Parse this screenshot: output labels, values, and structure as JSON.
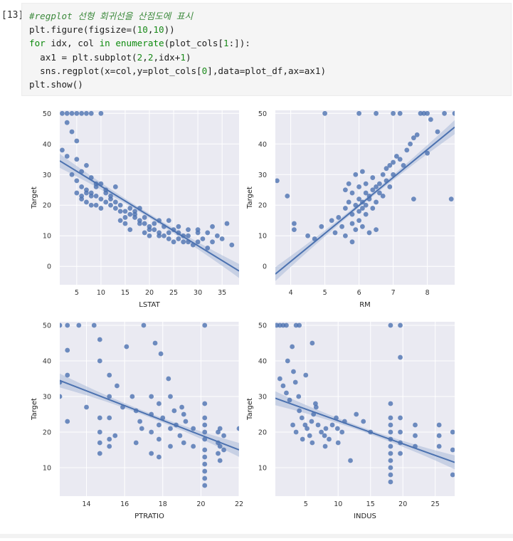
{
  "cell": {
    "prompt": "[13]",
    "code_lines": [
      "#regplot 선형 회귀선을 산점도에 표시",
      "plt.figure(figsize=(10,10))",
      "for idx, col in enumerate(plot_cols[1:]):",
      "  ax1 = plt.subplot(2,2,idx+1)",
      "  sns.regplot(x=col,y=plot_cols[0],data=plot_df,ax=ax1)",
      "plt.show()"
    ]
  },
  "colors": {
    "axes_bg": "#eaeaf2",
    "grid": "#ffffff",
    "point": "#4c72b0",
    "line": "#4c72b0",
    "ci_band": "#a9b9d8"
  },
  "chart_data": [
    {
      "type": "scatter",
      "xlabel": "LSTAT",
      "ylabel": "Target",
      "xlim": [
        1.5,
        38.5
      ],
      "ylim": [
        -6,
        51
      ],
      "xticks": [
        "5",
        "10",
        "15",
        "20",
        "25",
        "30",
        "35"
      ],
      "yticks": [
        "0",
        "10",
        "20",
        "30",
        "40",
        "50"
      ],
      "regression": {
        "x": [
          1.5,
          38.5
        ],
        "y": [
          34.5,
          -1.5
        ]
      },
      "points": [
        [
          2,
          50
        ],
        [
          3,
          50
        ],
        [
          4,
          50
        ],
        [
          5,
          50
        ],
        [
          6,
          50
        ],
        [
          7,
          50
        ],
        [
          8,
          50
        ],
        [
          10,
          50
        ],
        [
          3,
          47
        ],
        [
          4,
          44
        ],
        [
          5,
          41
        ],
        [
          2,
          38
        ],
        [
          3,
          36
        ],
        [
          5,
          35
        ],
        [
          7,
          33
        ],
        [
          6,
          31
        ],
        [
          8,
          29
        ],
        [
          9,
          27
        ],
        [
          4,
          30
        ],
        [
          5,
          28
        ],
        [
          6,
          26
        ],
        [
          7,
          25
        ],
        [
          8,
          24
        ],
        [
          9,
          23
        ],
        [
          10,
          22
        ],
        [
          11,
          21
        ],
        [
          12,
          20
        ],
        [
          13,
          19
        ],
        [
          14,
          20
        ],
        [
          15,
          18
        ],
        [
          16,
          17
        ],
        [
          17,
          16
        ],
        [
          18,
          15
        ],
        [
          19,
          14
        ],
        [
          20,
          13
        ],
        [
          21,
          12
        ],
        [
          22,
          11
        ],
        [
          23,
          10
        ],
        [
          24,
          9
        ],
        [
          25,
          8
        ],
        [
          26,
          9
        ],
        [
          27,
          8
        ],
        [
          28,
          10
        ],
        [
          29,
          7
        ],
        [
          30,
          8
        ],
        [
          31,
          9
        ],
        [
          32,
          6
        ],
        [
          33,
          8
        ],
        [
          35,
          9
        ],
        [
          37,
          7
        ],
        [
          6,
          22
        ],
        [
          7,
          21
        ],
        [
          8,
          23
        ],
        [
          9,
          20
        ],
        [
          10,
          19
        ],
        [
          11,
          24
        ],
        [
          12,
          22
        ],
        [
          13,
          21
        ],
        [
          14,
          18
        ],
        [
          15,
          16
        ],
        [
          16,
          19
        ],
        [
          17,
          17
        ],
        [
          18,
          14
        ],
        [
          19,
          16
        ],
        [
          20,
          12
        ],
        [
          21,
          14
        ],
        [
          22,
          10
        ],
        [
          23,
          13
        ],
        [
          24,
          11
        ],
        [
          25,
          12
        ],
        [
          26,
          11
        ],
        [
          27,
          10
        ],
        [
          28,
          8
        ],
        [
          30,
          12
        ],
        [
          32,
          11
        ],
        [
          34,
          10
        ],
        [
          36,
          14
        ],
        [
          5,
          24
        ],
        [
          6,
          23
        ],
        [
          7,
          24
        ],
        [
          8,
          20
        ],
        [
          9,
          26
        ],
        [
          10,
          27
        ],
        [
          11,
          25
        ],
        [
          12,
          23
        ],
        [
          13,
          26
        ],
        [
          14,
          15
        ],
        [
          15,
          14
        ],
        [
          16,
          12
        ],
        [
          17,
          18
        ],
        [
          18,
          19
        ],
        [
          19,
          11
        ],
        [
          20,
          10
        ],
        [
          22,
          15
        ],
        [
          24,
          15
        ],
        [
          26,
          13
        ],
        [
          28,
          12
        ],
        [
          30,
          11
        ],
        [
          33,
          13
        ]
      ]
    },
    {
      "type": "scatter",
      "xlabel": "RM",
      "ylabel": "Target",
      "xlim": [
        3.55,
        8.8
      ],
      "ylim": [
        -6,
        51
      ],
      "xticks": [
        "4",
        "5",
        "6",
        "7",
        "8"
      ],
      "yticks": [
        "0",
        "10",
        "20",
        "30",
        "40",
        "50"
      ],
      "regression": {
        "x": [
          3.55,
          8.8
        ],
        "y": [
          -2.5,
          45.5
        ]
      },
      "points": [
        [
          3.6,
          28
        ],
        [
          3.9,
          23
        ],
        [
          4.1,
          14
        ],
        [
          4.1,
          12
        ],
        [
          4.5,
          10
        ],
        [
          4.7,
          9
        ],
        [
          4.9,
          13
        ],
        [
          5.0,
          50
        ],
        [
          5.2,
          15
        ],
        [
          5.3,
          11
        ],
        [
          5.4,
          16
        ],
        [
          5.5,
          13
        ],
        [
          5.6,
          19
        ],
        [
          5.6,
          10
        ],
        [
          5.7,
          21
        ],
        [
          5.8,
          17
        ],
        [
          5.8,
          14
        ],
        [
          5.9,
          20
        ],
        [
          5.9,
          12
        ],
        [
          6.0,
          22
        ],
        [
          6.0,
          18
        ],
        [
          6.0,
          15
        ],
        [
          6.1,
          21
        ],
        [
          6.1,
          19
        ],
        [
          6.2,
          24
        ],
        [
          6.2,
          17
        ],
        [
          6.2,
          20
        ],
        [
          6.3,
          23
        ],
        [
          6.3,
          22
        ],
        [
          6.4,
          25
        ],
        [
          6.4,
          19
        ],
        [
          6.5,
          26
        ],
        [
          6.5,
          21
        ],
        [
          6.6,
          27
        ],
        [
          6.6,
          24
        ],
        [
          6.7,
          30
        ],
        [
          6.7,
          23
        ],
        [
          6.8,
          28
        ],
        [
          6.8,
          32
        ],
        [
          6.9,
          33
        ],
        [
          6.9,
          26
        ],
        [
          7.0,
          34
        ],
        [
          7.0,
          30
        ],
        [
          7.1,
          36
        ],
        [
          7.2,
          35
        ],
        [
          7.3,
          33
        ],
        [
          7.4,
          38
        ],
        [
          7.5,
          40
        ],
        [
          7.6,
          42
        ],
        [
          7.7,
          43
        ],
        [
          7.8,
          50
        ],
        [
          7.9,
          50
        ],
        [
          8.0,
          50
        ],
        [
          8.1,
          48
        ],
        [
          8.3,
          44
        ],
        [
          8.5,
          50
        ],
        [
          8.7,
          22
        ],
        [
          6.0,
          50
        ],
        [
          6.5,
          50
        ],
        [
          7.0,
          50
        ],
        [
          7.2,
          50
        ],
        [
          8.8,
          50
        ],
        [
          5.6,
          25
        ],
        [
          5.7,
          27
        ],
        [
          5.8,
          24
        ],
        [
          6.0,
          26
        ],
        [
          6.2,
          27
        ],
        [
          6.4,
          29
        ],
        [
          5.9,
          30
        ],
        [
          6.1,
          31
        ],
        [
          6.3,
          11
        ],
        [
          6.1,
          13
        ],
        [
          5.8,
          8
        ],
        [
          6.5,
          12
        ],
        [
          7.6,
          22
        ],
        [
          8.0,
          37
        ]
      ]
    },
    {
      "type": "scatter",
      "xlabel": "PTRATIO",
      "ylabel": "Target",
      "xlim": [
        12.6,
        22.0
      ],
      "ylim": [
        2,
        51
      ],
      "xticks": [
        "14",
        "16",
        "18",
        "20",
        "22"
      ],
      "yticks": [
        "10",
        "20",
        "30",
        "40",
        "50"
      ],
      "regression": {
        "x": [
          12.6,
          22.0
        ],
        "y": [
          34.5,
          15.0
        ]
      },
      "points": [
        [
          12.6,
          50
        ],
        [
          12.6,
          34
        ],
        [
          12.6,
          30
        ],
        [
          13.0,
          50
        ],
        [
          13.0,
          43
        ],
        [
          13.0,
          36
        ],
        [
          13.0,
          23
        ],
        [
          13.6,
          50
        ],
        [
          14.4,
          50
        ],
        [
          14.7,
          46
        ],
        [
          14.7,
          40
        ],
        [
          14.7,
          24
        ],
        [
          14.7,
          20
        ],
        [
          14.7,
          17
        ],
        [
          14.7,
          14
        ],
        [
          15.2,
          36
        ],
        [
          15.2,
          30
        ],
        [
          15.2,
          24
        ],
        [
          15.2,
          18
        ],
        [
          15.2,
          16
        ],
        [
          15.6,
          33
        ],
        [
          15.9,
          27
        ],
        [
          16.1,
          44
        ],
        [
          16.4,
          30
        ],
        [
          16.6,
          26
        ],
        [
          16.8,
          23
        ],
        [
          16.9,
          21
        ],
        [
          17.4,
          30
        ],
        [
          17.4,
          25
        ],
        [
          17.4,
          20
        ],
        [
          17.4,
          14
        ],
        [
          17.8,
          28
        ],
        [
          17.8,
          22
        ],
        [
          17.8,
          18
        ],
        [
          17.8,
          13
        ],
        [
          17.9,
          42
        ],
        [
          18.0,
          24
        ],
        [
          18.4,
          30
        ],
        [
          18.4,
          21
        ],
        [
          18.4,
          16
        ],
        [
          18.6,
          26
        ],
        [
          18.7,
          22
        ],
        [
          18.9,
          19
        ],
        [
          19.1,
          25
        ],
        [
          19.1,
          17
        ],
        [
          19.2,
          23
        ],
        [
          19.6,
          21
        ],
        [
          19.6,
          16
        ],
        [
          20.2,
          50
        ],
        [
          20.2,
          28
        ],
        [
          20.2,
          24
        ],
        [
          20.2,
          22
        ],
        [
          20.2,
          20
        ],
        [
          20.2,
          18
        ],
        [
          20.2,
          15
        ],
        [
          20.2,
          13
        ],
        [
          20.2,
          11
        ],
        [
          20.2,
          9
        ],
        [
          20.2,
          7
        ],
        [
          20.2,
          5
        ],
        [
          20.9,
          20
        ],
        [
          20.9,
          17
        ],
        [
          20.9,
          14
        ],
        [
          21.0,
          21
        ],
        [
          21.0,
          16
        ],
        [
          21.0,
          12
        ],
        [
          21.2,
          19
        ],
        [
          21.2,
          15
        ],
        [
          22.0,
          21
        ],
        [
          14.0,
          27
        ],
        [
          15.5,
          19
        ],
        [
          16.6,
          17
        ],
        [
          17.0,
          50
        ],
        [
          17.6,
          45
        ],
        [
          18.3,
          35
        ],
        [
          19.0,
          27
        ]
      ]
    },
    {
      "type": "scatter",
      "xlabel": "INDUS",
      "ylabel": "Target",
      "xlim": [
        0.3,
        28.0
      ],
      "ylim": [
        2,
        51
      ],
      "xticks": [
        "5",
        "10",
        "15",
        "20",
        "25"
      ],
      "yticks": [
        "10",
        "20",
        "30",
        "40",
        "50"
      ],
      "regression": {
        "x": [
          0.3,
          28.0
        ],
        "y": [
          29.5,
          11.5
        ]
      },
      "points": [
        [
          0.5,
          50
        ],
        [
          1,
          50
        ],
        [
          1.5,
          50
        ],
        [
          2,
          50
        ],
        [
          3.5,
          50
        ],
        [
          4,
          50
        ],
        [
          1,
          35
        ],
        [
          1.5,
          33
        ],
        [
          2,
          31
        ],
        [
          2.5,
          29
        ],
        [
          2.2,
          40
        ],
        [
          2.9,
          44
        ],
        [
          3.1,
          37
        ],
        [
          3.4,
          34
        ],
        [
          3.9,
          30
        ],
        [
          4.0,
          26
        ],
        [
          4.4,
          24
        ],
        [
          4.9,
          22
        ],
        [
          5.2,
          21
        ],
        [
          5.6,
          19
        ],
        [
          5.9,
          23
        ],
        [
          6.2,
          25
        ],
        [
          6.6,
          27
        ],
        [
          6.9,
          22
        ],
        [
          7.4,
          20
        ],
        [
          7.9,
          19
        ],
        [
          8.1,
          21
        ],
        [
          8.6,
          18
        ],
        [
          9.1,
          22
        ],
        [
          9.7,
          24
        ],
        [
          9.9,
          21
        ],
        [
          10.6,
          20
        ],
        [
          11.9,
          12
        ],
        [
          12.8,
          25
        ],
        [
          13.9,
          23
        ],
        [
          15.0,
          20
        ],
        [
          18.1,
          28
        ],
        [
          18.1,
          24
        ],
        [
          18.1,
          22
        ],
        [
          18.1,
          20
        ],
        [
          18.1,
          18
        ],
        [
          18.1,
          16
        ],
        [
          18.1,
          14
        ],
        [
          18.1,
          12
        ],
        [
          18.1,
          10
        ],
        [
          18.1,
          8
        ],
        [
          18.1,
          6
        ],
        [
          18.1,
          50
        ],
        [
          19.6,
          50
        ],
        [
          19.6,
          41
        ],
        [
          19.6,
          24
        ],
        [
          19.6,
          20
        ],
        [
          19.6,
          17
        ],
        [
          19.6,
          14
        ],
        [
          21.9,
          22
        ],
        [
          21.9,
          19
        ],
        [
          21.9,
          16
        ],
        [
          25.6,
          22
        ],
        [
          25.6,
          19
        ],
        [
          25.6,
          16
        ],
        [
          27.7,
          20
        ],
        [
          27.7,
          15
        ],
        [
          27.7,
          8
        ],
        [
          3.0,
          22
        ],
        [
          3.5,
          20
        ],
        [
          4.5,
          18
        ],
        [
          6.0,
          17
        ],
        [
          6.5,
          28
        ],
        [
          8.0,
          16
        ],
        [
          10.0,
          17
        ],
        [
          11.0,
          23
        ],
        [
          5.0,
          36
        ],
        [
          6.0,
          45
        ]
      ]
    }
  ]
}
